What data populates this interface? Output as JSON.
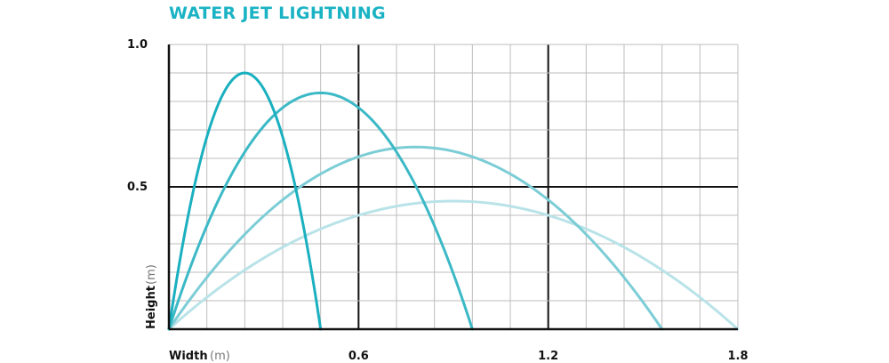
{
  "chart_data": {
    "type": "line",
    "title": "WATER JET LIGHTNING",
    "xlabel": "Width",
    "xlabel_unit": "(m)",
    "ylabel": "Height",
    "ylabel_unit": "(m)",
    "xlim": [
      0,
      1.8
    ],
    "ylim": [
      0,
      1.0
    ],
    "x_ticks": [
      "0.6",
      "1.2",
      "1.8"
    ],
    "y_ticks": [
      "1.0",
      "0.5"
    ],
    "grid": true,
    "accent_color": "#1ab3c4",
    "series": [
      {
        "color": "#1ab0bf",
        "x": [
          0,
          0.24,
          0.48
        ],
        "y": [
          0,
          0.9,
          0
        ]
      },
      {
        "color": "#3cb9c6",
        "x": [
          0,
          0.48,
          0.96
        ],
        "y": [
          0,
          0.83,
          0
        ]
      },
      {
        "color": "#7ccdd6",
        "x": [
          0,
          0.78,
          1.56
        ],
        "y": [
          0,
          0.64,
          0
        ]
      },
      {
        "color": "#b9e3e8",
        "x": [
          0,
          0.9,
          1.8
        ],
        "y": [
          0,
          0.45,
          0
        ]
      }
    ]
  }
}
